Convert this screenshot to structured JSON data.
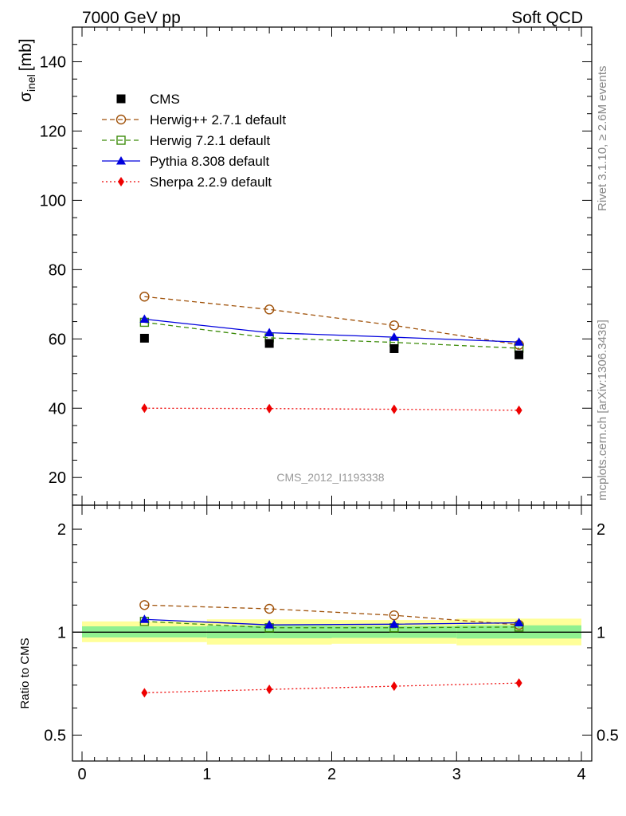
{
  "header": {
    "left": "7000 GeV pp",
    "right": "Soft QCD"
  },
  "side_labels": {
    "rivet": "Rivet 3.1.10, ≥ 2.6M events",
    "mcplots": "mcplots.cern.ch [arXiv:1306.3436]"
  },
  "analysis_label": "CMS_2012_I1193338",
  "chart_data": {
    "type": "line",
    "x_range": [
      0,
      4
    ],
    "x_ticks": [
      "0",
      "1",
      "2",
      "3",
      "4"
    ],
    "main_panel": {
      "ylabel": "σ",
      "ylabel_sub": "inel",
      "ylabel_unit": "[mb]",
      "ylim": [
        12,
        150
      ],
      "y_ticks": [
        "20",
        "40",
        "60",
        "80",
        "100",
        "120",
        "140"
      ],
      "legend_position": "top-left",
      "series": [
        {
          "name": "CMS",
          "color": "#000000",
          "style": "data-square",
          "x": [
            0.5,
            1.5,
            2.5,
            3.5
          ],
          "y": [
            60.2,
            58.7,
            57.2,
            55.4
          ]
        },
        {
          "name": "Herwig++ 2.7.1 default",
          "color": "#a0520a",
          "style": "dashed-open-circle",
          "x": [
            0.5,
            1.5,
            2.5,
            3.5
          ],
          "y": [
            72.2,
            68.5,
            63.9,
            58.3
          ]
        },
        {
          "name": "Herwig 7.2.1 default",
          "color": "#3d8c0a",
          "style": "dashed-open-square",
          "x": [
            0.5,
            1.5,
            2.5,
            3.5
          ],
          "y": [
            64.8,
            60.3,
            59.0,
            57.3
          ]
        },
        {
          "name": "Pythia 8.308 default",
          "color": "#0000dd",
          "style": "solid-triangle",
          "x": [
            0.5,
            1.5,
            2.5,
            3.5
          ],
          "y": [
            65.7,
            61.8,
            60.5,
            59.1
          ]
        },
        {
          "name": "Sherpa 2.2.9 default",
          "color": "#ee0000",
          "style": "dotted-diamond",
          "x": [
            0.5,
            1.5,
            2.5,
            3.5
          ],
          "y": [
            40.0,
            39.9,
            39.7,
            39.4
          ]
        }
      ]
    },
    "ratio_panel": {
      "ylabel": "Ratio to CMS",
      "log_scale": true,
      "ylim": [
        0.42,
        2.35
      ],
      "y_ticks": [
        "0.5",
        "1",
        "2"
      ],
      "band_inner": [
        {
          "x0": 0,
          "x1": 1,
          "lo": 0.965,
          "hi": 1.04
        },
        {
          "x0": 1,
          "x1": 2,
          "lo": 0.96,
          "hi": 1.045
        },
        {
          "x0": 2,
          "x1": 3,
          "lo": 0.962,
          "hi": 1.043
        },
        {
          "x0": 3,
          "x1": 4,
          "lo": 0.958,
          "hi": 1.047
        }
      ],
      "band_outer": [
        {
          "x0": 0,
          "x1": 1,
          "lo": 0.935,
          "hi": 1.075
        },
        {
          "x0": 1,
          "x1": 2,
          "lo": 0.92,
          "hi": 1.09
        },
        {
          "x0": 2,
          "x1": 3,
          "lo": 0.925,
          "hi": 1.085
        },
        {
          "x0": 3,
          "x1": 4,
          "lo": 0.915,
          "hi": 1.095
        }
      ],
      "series": [
        {
          "name": "Herwig++ 2.7.1 default",
          "y": [
            1.2,
            1.17,
            1.12,
            1.05
          ]
        },
        {
          "name": "Herwig 7.2.1 default",
          "y": [
            1.075,
            1.03,
            1.03,
            1.035
          ]
        },
        {
          "name": "Pythia 8.308 default",
          "y": [
            1.09,
            1.05,
            1.055,
            1.065
          ]
        },
        {
          "name": "Sherpa 2.2.9 default",
          "y": [
            0.665,
            0.68,
            0.695,
            0.71
          ]
        }
      ]
    }
  }
}
